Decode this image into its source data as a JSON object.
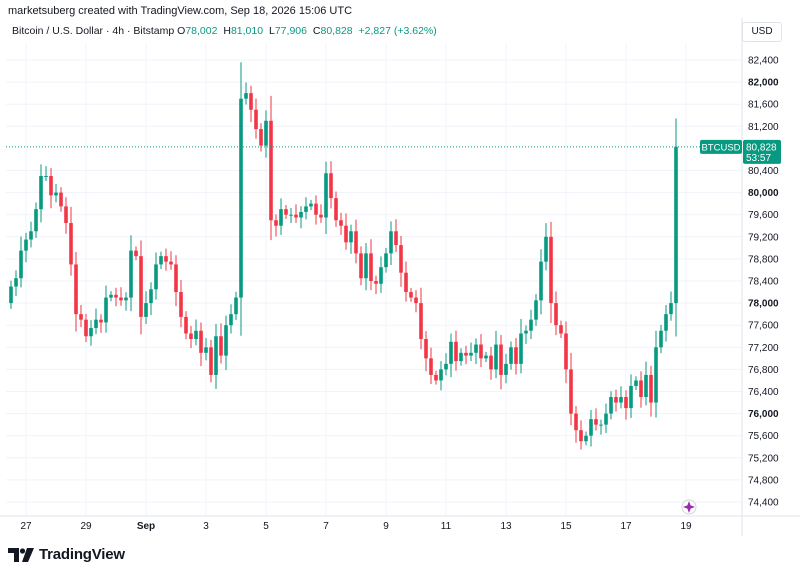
{
  "credit": "marketsuberg created with TradingView.com, Sep 18, 2026 15:06 UTC",
  "legend": {
    "symbol": "Bitcoin / U.S. Dollar · 4h · Bitstamp",
    "o_label": "O",
    "o_value": "78,002",
    "h_label": "H",
    "h_value": "81,010",
    "l_label": "L",
    "l_value": "77,906",
    "c_label": "C",
    "c_value": "80,828",
    "change": "+2,827 (+3.62%)"
  },
  "currency": "USD",
  "price_tag": {
    "symbol": "BTCUSD",
    "price": "80,828",
    "countdown": "53:57"
  },
  "brand": "TradingView",
  "colors": {
    "up": "#089981",
    "down": "#f23645",
    "grid": "#f0f3fa",
    "text": "#131722"
  },
  "icons": {
    "brand": "tradingview-logo-icon",
    "spark": "sparkle-icon"
  },
  "chart_data": {
    "type": "candlestick",
    "timeframe": "4h",
    "ylim": [
      74000,
      83000
    ],
    "last_price": 80828,
    "y_ticks": [
      {
        "value": 74400,
        "label": "74,400",
        "bold": false
      },
      {
        "value": 74800,
        "label": "74,800",
        "bold": false
      },
      {
        "value": 75200,
        "label": "75,200",
        "bold": false
      },
      {
        "value": 75600,
        "label": "75,600",
        "bold": false
      },
      {
        "value": 76000,
        "label": "76,000",
        "bold": true
      },
      {
        "value": 76400,
        "label": "76,400",
        "bold": false
      },
      {
        "value": 76800,
        "label": "76,800",
        "bold": false
      },
      {
        "value": 77200,
        "label": "77,200",
        "bold": false
      },
      {
        "value": 77600,
        "label": "77,600",
        "bold": false
      },
      {
        "value": 78000,
        "label": "78,000",
        "bold": true
      },
      {
        "value": 78400,
        "label": "78,400",
        "bold": false
      },
      {
        "value": 78800,
        "label": "78,800",
        "bold": false
      },
      {
        "value": 79200,
        "label": "79,200",
        "bold": false
      },
      {
        "value": 79600,
        "label": "79,600",
        "bold": false
      },
      {
        "value": 80000,
        "label": "80,000",
        "bold": true
      },
      {
        "value": 80400,
        "label": "80,400",
        "bold": false
      },
      {
        "value": 81200,
        "label": "81,200",
        "bold": false
      },
      {
        "value": 81600,
        "label": "81,600",
        "bold": false
      },
      {
        "value": 82000,
        "label": "82,000",
        "bold": true
      },
      {
        "value": 82400,
        "label": "82,400",
        "bold": false
      }
    ],
    "x_ticks": [
      {
        "index": 3,
        "label": "27",
        "bold": false
      },
      {
        "index": 15,
        "label": "29",
        "bold": false
      },
      {
        "index": 27,
        "label": "Sep",
        "bold": true
      },
      {
        "index": 39,
        "label": "3",
        "bold": false
      },
      {
        "index": 51,
        "label": "5",
        "bold": false
      },
      {
        "index": 63,
        "label": "7",
        "bold": false
      },
      {
        "index": 75,
        "label": "9",
        "bold": false
      },
      {
        "index": 87,
        "label": "11",
        "bold": false
      },
      {
        "index": 99,
        "label": "13",
        "bold": false
      },
      {
        "index": 111,
        "label": "15",
        "bold": false
      },
      {
        "index": 123,
        "label": "17",
        "bold": false
      },
      {
        "index": 135,
        "label": "19",
        "bold": false
      }
    ],
    "close": [
      78300,
      78450,
      78950,
      79150,
      79300,
      79700,
      80300,
      80300,
      79950,
      80000,
      79750,
      79450,
      78700,
      77800,
      77700,
      77400,
      77550,
      77700,
      77650,
      78100,
      78150,
      78100,
      78050,
      78100,
      78950,
      78850,
      77750,
      78000,
      78250,
      78700,
      78850,
      78750,
      78700,
      78200,
      77750,
      77450,
      77350,
      77500,
      77100,
      77200,
      76700,
      77400,
      77050,
      77600,
      77800,
      78100,
      81700,
      81800,
      81500,
      81150,
      80850,
      81300,
      79500,
      79400,
      79700,
      79600,
      79600,
      79550,
      79650,
      79750,
      79800,
      79600,
      79550,
      80350,
      79900,
      79500,
      79400,
      79100,
      79300,
      78900,
      78450,
      78900,
      78400,
      78350,
      78650,
      78900,
      79300,
      79050,
      78550,
      78200,
      78100,
      78000,
      77350,
      77000,
      76700,
      76600,
      76800,
      76900,
      77300,
      76950,
      77100,
      77050,
      77100,
      77250,
      77000,
      77050,
      76800,
      77250,
      76700,
      76900,
      77200,
      76900,
      77450,
      77500,
      77700,
      78050,
      78750,
      79200,
      78000,
      77600,
      77450,
      76800,
      76000,
      75700,
      75500,
      75600,
      75900,
      75800,
      75800,
      76000,
      76300,
      76200,
      76300,
      76100,
      76500,
      76600,
      76300,
      76700,
      76200,
      77200,
      77500,
      77800,
      78000,
      80828
    ]
  }
}
